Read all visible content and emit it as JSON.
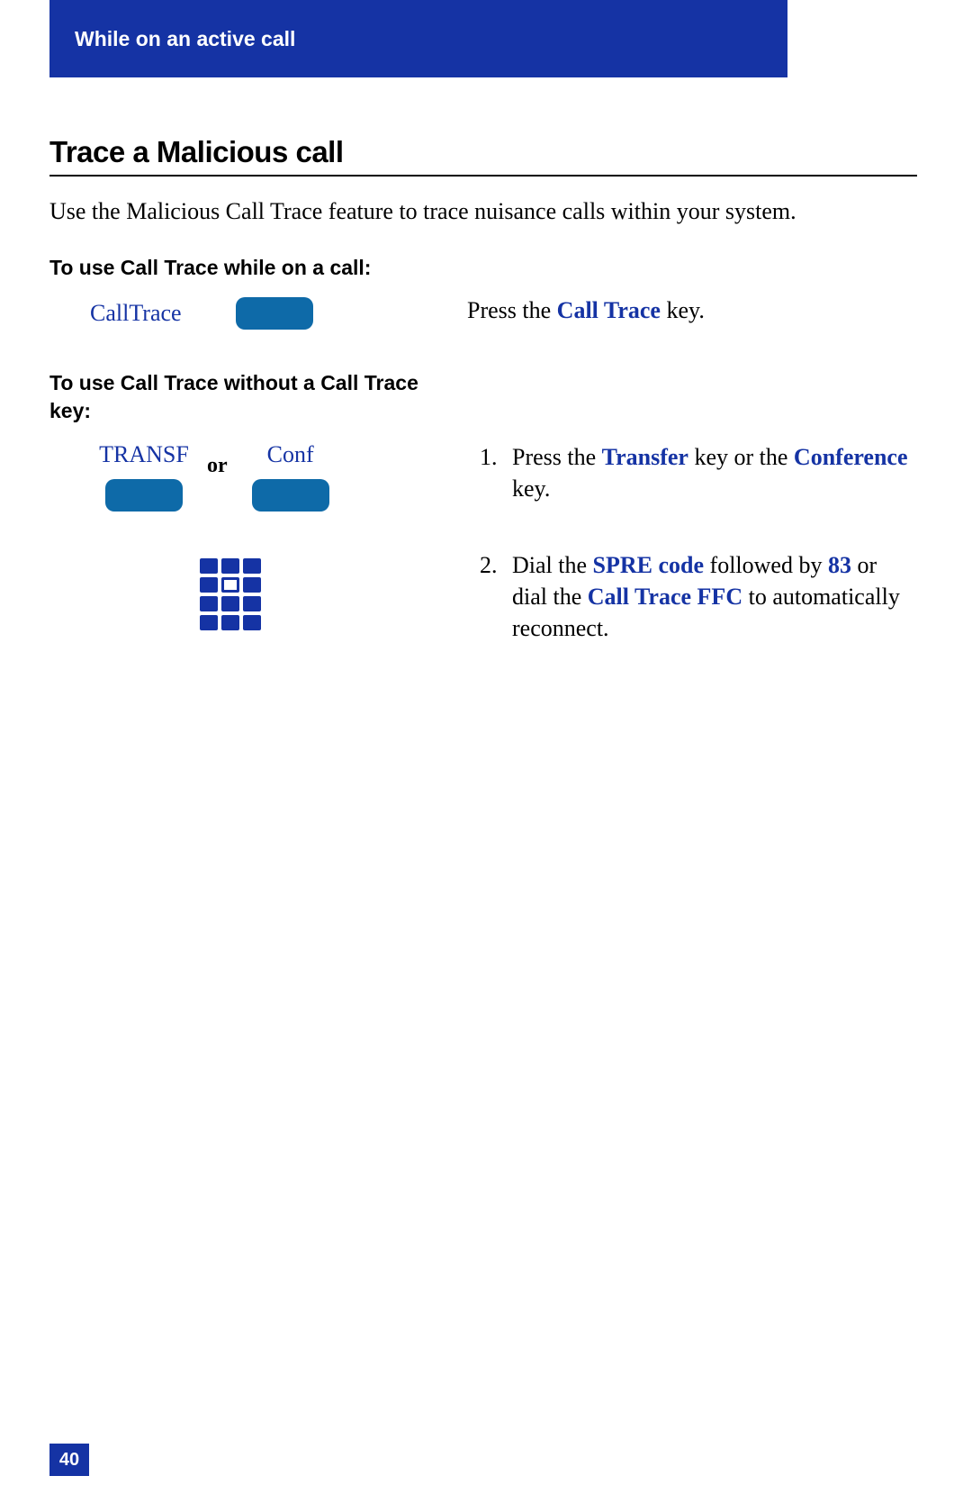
{
  "header": {
    "title": "While on an active call"
  },
  "section": {
    "title": "Trace a Malicious call",
    "intro": "Use the Malicious Call Trace feature to trace nuisance calls within your system."
  },
  "sub1": {
    "heading": "To use Call Trace while on a call:"
  },
  "softkey1": {
    "label": "CallTrace"
  },
  "instr1": {
    "prefix": "Press the ",
    "key": "Call Trace",
    "suffix": " key."
  },
  "sub2": {
    "heading": "To use Call Trace without a Call Trace key:"
  },
  "softkey2a": {
    "label": "TRANSF"
  },
  "softkey2b": {
    "label": "Conf"
  },
  "or": {
    "label": "or"
  },
  "steps": [
    {
      "t1": "Press the ",
      "k1": "Transfer",
      "t2": " key or the ",
      "k2": "Conference",
      "t3": " key."
    },
    {
      "t1": "Dial the ",
      "k1": "SPRE code",
      "t2": " followed by ",
      "k2": "83",
      "t3": " or dial the ",
      "k3": "Call Trace FFC",
      "t4": " to automatically reconnect."
    }
  ],
  "page": {
    "number": "40"
  },
  "colors": {
    "banner": "#1533a4",
    "softkey": "#0e6aa8",
    "link": "#1533a4"
  }
}
